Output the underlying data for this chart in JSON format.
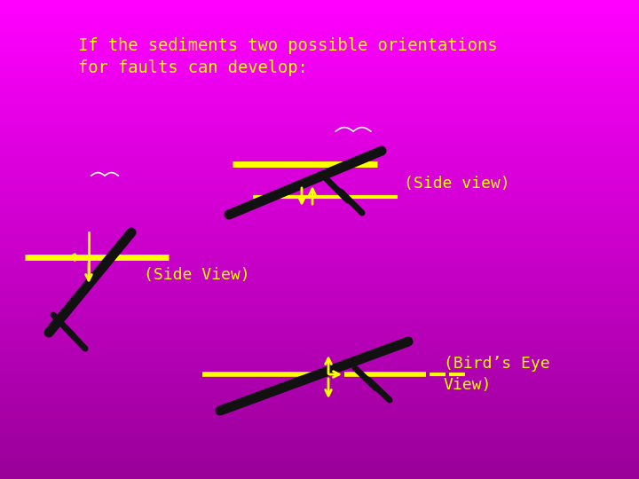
{
  "bg_color_top": "#FF00FF",
  "bg_color_bottom": "#990099",
  "text_color": "#FFFF00",
  "line_color_yellow": "#FFFF00",
  "line_color_black": "#111111",
  "title_line1": "If the sediments two possible orientations",
  "title_line2": "for faults can develop:",
  "label_side_view1": "(Side view)",
  "label_side_view2": "(Side View)",
  "label_birds_eye": "(Bird’s Eye\nView)",
  "font_size_title": 13.5,
  "font_size_label": 13
}
